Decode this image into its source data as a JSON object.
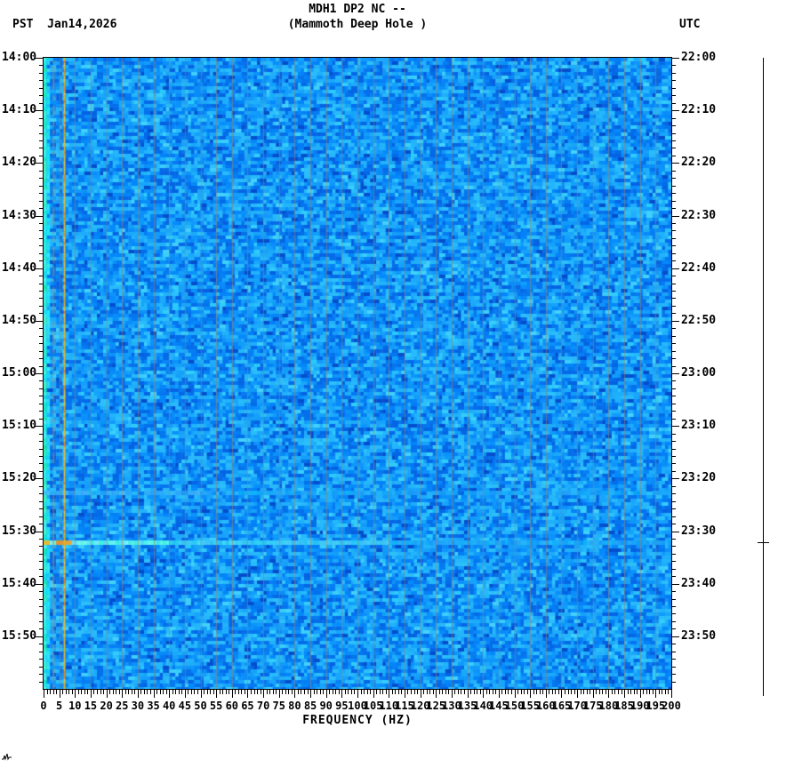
{
  "header": {
    "station_title": "MDH1 DP2 NC --",
    "station_subtitle": "(Mammoth Deep Hole )",
    "left_timezone": "PST",
    "date": "Jan14,2026",
    "right_timezone": "UTC"
  },
  "chart_data": {
    "type": "heatmap",
    "title": "MDH1 DP2 NC -- (Mammoth Deep Hole )",
    "xlabel": "FREQUENCY (HZ)",
    "x_range_hz": [
      0,
      200
    ],
    "x_major_tick_step_hz": 5,
    "x_minor_tick_step_hz": 1,
    "x_tick_labels": [
      "0",
      "5",
      "10",
      "15",
      "20",
      "25",
      "30",
      "35",
      "40",
      "45",
      "50",
      "55",
      "60",
      "65",
      "70",
      "75",
      "80",
      "85",
      "90",
      "95",
      "100",
      "105",
      "110",
      "115",
      "120",
      "125",
      "130",
      "135",
      "140",
      "145",
      "150",
      "155",
      "160",
      "165",
      "170",
      "175",
      "180",
      "185",
      "190",
      "195",
      "200"
    ],
    "left_axis": {
      "timezone": "PST",
      "start": "14:00",
      "end": "16:00",
      "major_tick_minutes": 10,
      "labels": [
        "14:00",
        "14:10",
        "14:20",
        "14:30",
        "14:40",
        "14:50",
        "15:00",
        "15:10",
        "15:20",
        "15:30",
        "15:40",
        "15:50"
      ]
    },
    "right_axis": {
      "timezone": "UTC",
      "start": "22:00",
      "end": "24:00",
      "major_tick_minutes": 10,
      "labels": [
        "22:00",
        "22:10",
        "22:20",
        "22:30",
        "22:40",
        "22:50",
        "23:00",
        "23:10",
        "23:20",
        "23:30",
        "23:40",
        "23:50"
      ]
    },
    "grid": "faint vertical lines at every 5 Hz",
    "legend": "none",
    "colors": {
      "background_noise_blue": "#0277f2",
      "light_blue": "#05a0ff",
      "cyan_pop": "#00c8ff",
      "dark_blue": "#0157d8",
      "dc_edge_cyan_green": "#2ee8b0",
      "noise_line_yellow": "#d8b432",
      "noise_line_orange": "#c87828",
      "five_hz_grid_line": "#a08264",
      "axis_black": "#000000",
      "page_background": "#ffffff"
    },
    "features": [
      {
        "name": "dc-edge-band",
        "type": "vertical-band",
        "freq_hz": [
          0,
          2
        ],
        "color": "cyan-green",
        "description": "bright cyan/green column hugging 0 Hz for the full duration"
      },
      {
        "name": "noise-line-3hz",
        "type": "vertical-line",
        "freq_hz": 3,
        "color": "faint orange",
        "description": "weak persistent narrowband noise line"
      },
      {
        "name": "noise-line-6p5hz",
        "type": "vertical-line",
        "freq_hz": 6.5,
        "color": "yellow",
        "description": "bright persistent narrowband noise line for full duration"
      },
      {
        "name": "harmonic-grid",
        "type": "vertical-lines",
        "freq_step_hz": 5,
        "color": "faint tan-gray",
        "description": "faint vertical lines every 5 Hz across entire band"
      },
      {
        "name": "event-band-strong",
        "type": "horizontal-band",
        "time_pst": "15:31",
        "time_utc": "23:31",
        "freq_extent_hz": [
          0,
          200
        ],
        "strongest_below_hz": 40,
        "color": "bright cyan with yellow-orange at 4-9 Hz",
        "description": "bright broadband event band, strongest below 40 Hz, fading toward 200 Hz"
      },
      {
        "name": "event-band-weak",
        "type": "horizontal-band",
        "time_pst": "15:21",
        "time_utc": "23:21",
        "freq_extent_hz": [
          0,
          200
        ],
        "strongest_below_hz": 60,
        "color": "light blue",
        "description": "weaker broadband brightening"
      }
    ],
    "right_margin_trace": {
      "description": "quiet vertical seismogram reference line at far right",
      "tick_time_pst": "15:31",
      "tick_time_utc": "23:31"
    }
  },
  "footer": {
    "waveform_mark": "tiny seismogram squiggle glyph at bottom-left"
  }
}
